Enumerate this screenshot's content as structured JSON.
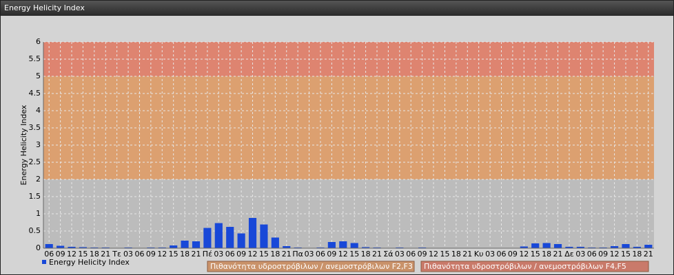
{
  "header": {
    "title": "Energy Helicity Index"
  },
  "chart_data": {
    "type": "bar",
    "y_label": "Energy Helicity Index",
    "categories": [
      "06",
      "09",
      "12",
      "15",
      "18",
      "21",
      "Τε",
      "03",
      "06",
      "09",
      "12",
      "15",
      "18",
      "21",
      "Πέ",
      "03",
      "06",
      "09",
      "12",
      "15",
      "18",
      "21",
      "Πα",
      "03",
      "06",
      "09",
      "12",
      "15",
      "18",
      "21",
      "Σά",
      "03",
      "06",
      "09",
      "12",
      "15",
      "18",
      "21",
      "Κυ",
      "03",
      "06",
      "09",
      "12",
      "15",
      "18",
      "21",
      "Δε",
      "03",
      "06",
      "09",
      "12",
      "15",
      "18",
      "21"
    ],
    "series": [
      {
        "name": "Energy Helicity Index",
        "color": "#1848d8",
        "values": [
          0.12,
          0.07,
          0.04,
          0.03,
          0.02,
          0.02,
          0.01,
          0.02,
          0.01,
          0.02,
          0.02,
          0.08,
          0.22,
          0.2,
          0.59,
          0.73,
          0.62,
          0.43,
          0.88,
          0.69,
          0.31,
          0.06,
          0.02,
          0.01,
          0.02,
          0.18,
          0.2,
          0.15,
          0.03,
          0.02,
          0.01,
          0.02,
          0.01,
          0.02,
          0.01,
          0.01,
          0.01,
          0.01,
          0.01,
          0.01,
          0.01,
          0.01,
          0.05,
          0.14,
          0.15,
          0.12,
          0.04,
          0.04,
          0.02,
          0.02,
          0.06,
          0.12,
          0.04,
          0.1
        ]
      }
    ],
    "ylim": [
      0,
      6
    ],
    "yticks": [
      0,
      0.5,
      1,
      1.5,
      2,
      2.5,
      3,
      3.5,
      4,
      4.5,
      5,
      5.5,
      6
    ],
    "grid": true,
    "bands": [
      {
        "from": 2,
        "to": 5,
        "color": "#dca070",
        "legend_color": "#c9926a",
        "label": "Πιθανότητα υδροστρόβιλων / ανεμοστρόβιλων F2,F3"
      },
      {
        "from": 5,
        "to": 6,
        "color": "#de8470",
        "legend_color": "#c97a6a",
        "label": "Πιθανότητα υδροστρόβιλων / ανεμοστρόβιλων F4,F5"
      }
    ]
  }
}
